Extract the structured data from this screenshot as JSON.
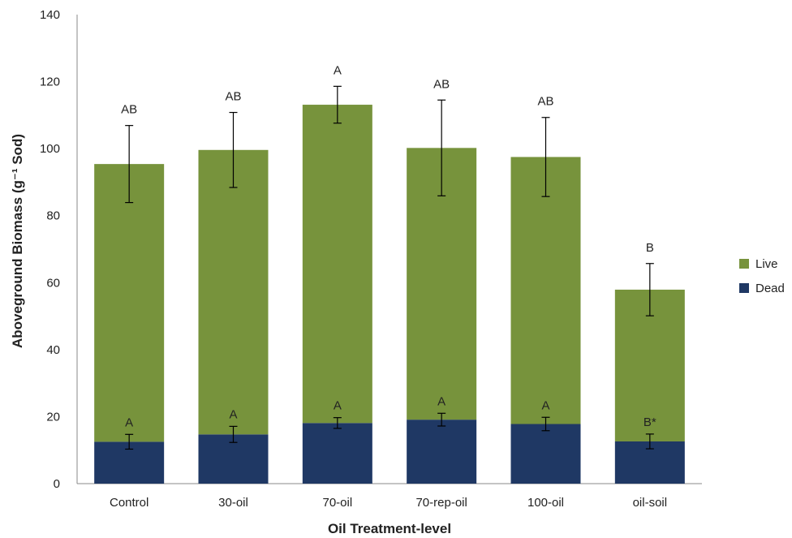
{
  "chart_data": {
    "type": "bar",
    "stacked": true,
    "title": "",
    "xlabel": "Oil Treatment-level",
    "ylabel": "Aboveground Biomass (g⁻¹ Sod)",
    "ylim": [
      0,
      140
    ],
    "yticks": [
      0,
      20,
      40,
      60,
      80,
      100,
      120,
      140
    ],
    "categories": [
      "Control",
      "30-oil",
      "70-oil",
      "70-rep-oil",
      "100-oil",
      "oil-soil"
    ],
    "legend_position": "right",
    "series": [
      {
        "name": "Dead",
        "color": "#1f3864",
        "values": [
          12.5,
          14.7,
          18.1,
          19.1,
          17.8,
          12.6
        ],
        "error": [
          2.2,
          2.4,
          1.6,
          1.9,
          2.0,
          2.2
        ],
        "labels": [
          "A",
          "A",
          "A",
          "A",
          "A",
          "B*"
        ]
      },
      {
        "name": "Live",
        "color": "#77933c",
        "values": [
          82.9,
          84.9,
          95.0,
          81.1,
          79.7,
          45.3
        ],
        "totals": [
          95.4,
          99.6,
          113.1,
          100.2,
          97.5,
          57.9
        ],
        "error": [
          11.5,
          11.2,
          5.5,
          14.3,
          11.8,
          7.8
        ],
        "labels": [
          "AB",
          "AB",
          "A",
          "AB",
          "AB",
          "B"
        ]
      }
    ]
  }
}
